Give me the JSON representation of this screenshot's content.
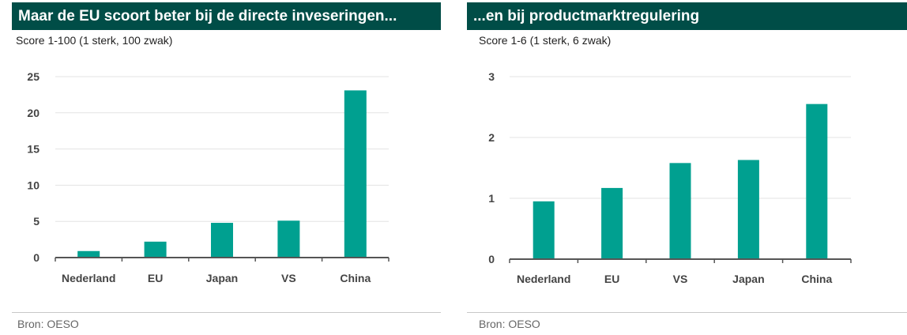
{
  "colors": {
    "header": "#004d47",
    "bar": "#00a090",
    "grid": "#e3e3e3",
    "axis": "#555555"
  },
  "chart_data": [
    {
      "type": "bar",
      "title": "Maar de EU scoort beter bij de directe inveseringen...",
      "subtitle": "Score 1-100 (1 sterk, 100 zwak)",
      "categories": [
        "Nederland",
        "EU",
        "Japan",
        "VS",
        "China"
      ],
      "values": [
        0.9,
        2.2,
        4.8,
        5.1,
        23.1
      ],
      "ylim": [
        0,
        25
      ],
      "yticks": [
        0,
        5,
        10,
        15,
        20,
        25
      ],
      "grid": true,
      "source": "Bron: OESO"
    },
    {
      "type": "bar",
      "title": "...en bij productmarktregulering",
      "subtitle": "Score 1-6 (1 sterk, 6 zwak)",
      "categories": [
        "Nederland",
        "EU",
        "VS",
        "Japan",
        "China"
      ],
      "values": [
        0.95,
        1.17,
        1.58,
        1.63,
        2.55
      ],
      "ylim": [
        0,
        3
      ],
      "yticks": [
        0,
        1,
        2,
        3
      ],
      "grid": true,
      "source": "Bron: OESO"
    }
  ]
}
